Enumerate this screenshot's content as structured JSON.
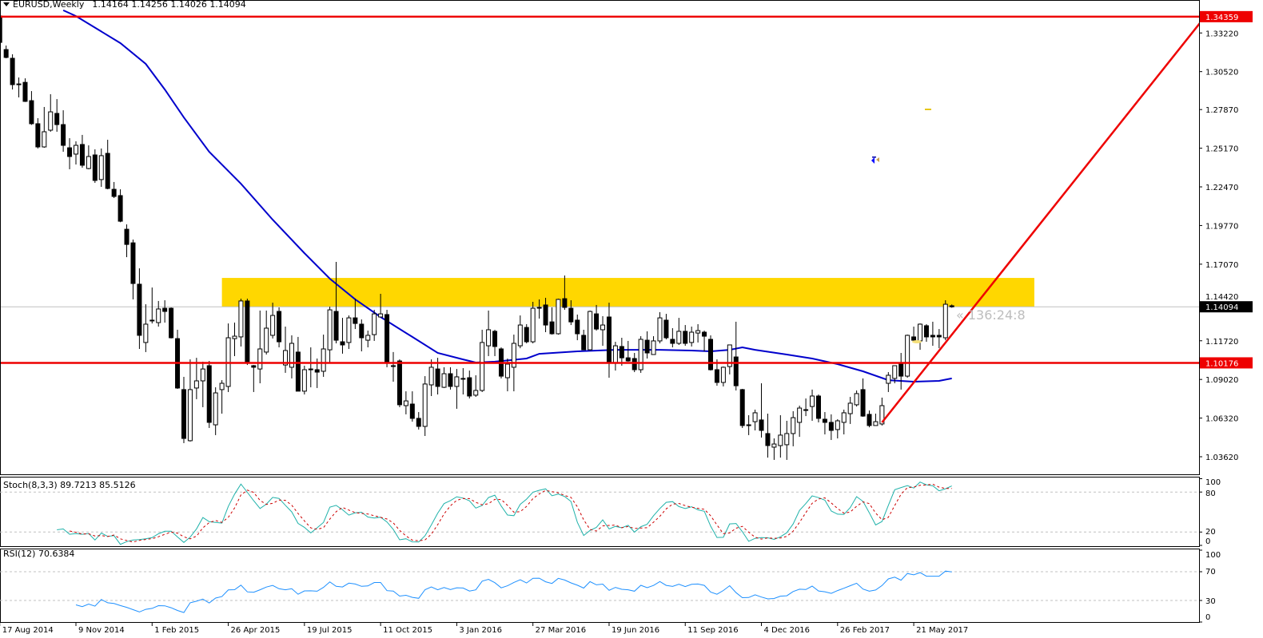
{
  "header": {
    "symbol_timeframe": "EURUSD,Weekly",
    "ohlc": "1.14164 1.14256 1.14026 1.14094",
    "menu_icon": "triangle-down-icon"
  },
  "countdown": "« 136:24:8",
  "colors": {
    "bull_body": "#ffffff",
    "bear_body": "#000000",
    "moving_average": "#0000cc",
    "horizontal_lines": "#ee0000",
    "trendline": "#ee0000",
    "zone": "#ffd700",
    "bid_line": "#c0c0c0",
    "stoch_main": "#20b2aa",
    "stoch_signal": "#cc0000",
    "rsi": "#1e90ff"
  },
  "chart_data": {
    "type": "candlestick",
    "symbol": "EURUSD",
    "timeframe": "Weekly",
    "grid": false,
    "price_axis": {
      "ticks": [
        "1.33220",
        "1.30520",
        "1.27870",
        "1.25170",
        "1.22470",
        "1.19770",
        "1.17070",
        "1.14420",
        "1.11720",
        "1.09020",
        "1.06320",
        "1.03620"
      ],
      "range": [
        1.0362,
        1.3435
      ]
    },
    "x_ticks": [
      "17 Aug 2014",
      "9 Nov 2014",
      "1 Feb 2015",
      "26 Apr 2015",
      "19 Jul 2015",
      "11 Oct 2015",
      "3 Jan 2016",
      "27 Mar 2016",
      "19 Jun 2016",
      "11 Sep 2016",
      "4 Dec 2016",
      "26 Feb 2017",
      "21 May 2017"
    ],
    "candles_ohlc": [
      [
        1.3441,
        1.345,
        1.324,
        1.3256
      ],
      [
        1.3206,
        1.3234,
        1.3145,
        1.3151
      ],
      [
        1.3145,
        1.3173,
        1.2927,
        1.2961
      ],
      [
        1.2966,
        1.3011,
        1.2872,
        1.2966
      ],
      [
        1.2977,
        1.3005,
        1.284,
        1.2844
      ],
      [
        1.2849,
        1.2916,
        1.268,
        1.2688
      ],
      [
        1.2688,
        1.2727,
        1.2515,
        1.2526
      ],
      [
        1.2526,
        1.2805,
        1.252,
        1.2632
      ],
      [
        1.2643,
        1.2894,
        1.2632,
        1.2771
      ],
      [
        1.276,
        1.286,
        1.2632,
        1.2682
      ],
      [
        1.2682,
        1.2782,
        1.2492,
        1.2537
      ],
      [
        1.252,
        1.2587,
        1.237,
        1.2459
      ],
      [
        1.2476,
        1.2565,
        1.2403,
        1.2537
      ],
      [
        1.2543,
        1.261,
        1.2381,
        1.2398
      ],
      [
        1.2375,
        1.2537,
        1.237,
        1.2459
      ],
      [
        1.247,
        1.2509,
        1.2275,
        1.2292
      ],
      [
        1.2298,
        1.2515,
        1.2247,
        1.2465
      ],
      [
        1.2481,
        1.2576,
        1.223,
        1.2236
      ],
      [
        1.223,
        1.2281,
        1.2169,
        1.218
      ],
      [
        1.2186,
        1.223,
        1.2,
        1.2007
      ],
      [
        1.1951,
        1.1985,
        1.1756,
        1.1845
      ],
      [
        1.1856,
        1.1879,
        1.1461,
        1.1572
      ],
      [
        1.1567,
        1.1678,
        1.1115,
        1.121
      ],
      [
        1.116,
        1.1427,
        1.1093,
        1.1288
      ],
      [
        1.1316,
        1.1544,
        1.1293,
        1.1316
      ],
      [
        1.1299,
        1.145,
        1.1271,
        1.1394
      ],
      [
        1.1399,
        1.1455,
        1.1299,
        1.1377
      ],
      [
        1.1399,
        1.1405,
        1.1188,
        1.1193
      ],
      [
        1.1187,
        1.1249,
        1.0836,
        1.0842
      ],
      [
        1.0831,
        1.092,
        1.0457,
        1.049
      ],
      [
        1.0474,
        1.1042,
        1.0468,
        1.0831
      ],
      [
        1.0842,
        1.1053,
        1.0764,
        1.0892
      ],
      [
        1.0892,
        1.1026,
        1.0708,
        1.0975
      ],
      [
        1.0998,
        1.1031,
        1.0563,
        1.0602
      ],
      [
        1.0585,
        1.0847,
        1.0513,
        1.0808
      ],
      [
        1.0831,
        1.0897,
        1.0663,
        1.0875
      ],
      [
        1.0853,
        1.1293,
        1.0814,
        1.1193
      ],
      [
        1.1187,
        1.1299,
        1.1065,
        1.1204
      ],
      [
        1.1199,
        1.1466,
        1.1132,
        1.145
      ],
      [
        1.145,
        1.1466,
        1.1003,
        1.102
      ],
      [
        1.0998,
        1.1003,
        1.0814,
        1.0987
      ],
      [
        1.0975,
        1.1383,
        1.0875,
        1.1115
      ],
      [
        1.1093,
        1.1383,
        1.1076,
        1.126
      ],
      [
        1.121,
        1.1438,
        1.1188,
        1.1349
      ],
      [
        1.1377,
        1.1405,
        1.1126,
        1.1165
      ],
      [
        1.1003,
        1.1271,
        1.0948,
        1.1104
      ],
      [
        1.0987,
        1.121,
        1.0909,
        1.1154
      ],
      [
        1.1093,
        1.1199,
        1.082,
        1.082
      ],
      [
        1.082,
        1.0998,
        1.0797,
        1.097
      ],
      [
        1.0975,
        1.1126,
        1.0847,
        1.0975
      ],
      [
        1.097,
        1.1048,
        1.0842,
        1.0953
      ],
      [
        1.0959,
        1.1215,
        1.092,
        1.1115
      ],
      [
        1.1109,
        1.141,
        1.102,
        1.1388
      ],
      [
        1.1377,
        1.1723,
        1.1154,
        1.1176
      ],
      [
        1.1165,
        1.1332,
        1.1082,
        1.1143
      ],
      [
        1.116,
        1.1349,
        1.1115,
        1.1332
      ],
      [
        1.1332,
        1.1466,
        1.1254,
        1.1293
      ],
      [
        1.1288,
        1.1321,
        1.1098,
        1.1193
      ],
      [
        1.1176,
        1.1243,
        1.1126,
        1.121
      ],
      [
        1.1215,
        1.1388,
        1.1171,
        1.136
      ],
      [
        1.1338,
        1.15,
        1.1338,
        1.136
      ],
      [
        1.1355,
        1.1388,
        1.0987,
        1.102
      ],
      [
        1.0998,
        1.1093,
        1.0886,
        1.0998
      ],
      [
        1.1031,
        1.1042,
        1.0708,
        1.0725
      ],
      [
        1.0719,
        1.0819,
        1.0658,
        1.0752
      ],
      [
        1.073,
        1.0819,
        1.0607,
        1.063
      ],
      [
        1.063,
        1.0674,
        1.0552,
        1.0574
      ],
      [
        1.0574,
        1.0925,
        1.0507,
        1.087
      ],
      [
        1.0864,
        1.1042,
        1.0786,
        1.0987
      ],
      [
        1.0975,
        1.1053,
        1.0797,
        1.0853
      ],
      [
        1.0847,
        1.0987,
        1.0842,
        1.0942
      ],
      [
        1.0942,
        1.0987,
        1.0831,
        1.0853
      ],
      [
        1.0853,
        1.0975,
        1.0697,
        1.092
      ],
      [
        1.0909,
        1.0981,
        1.0797,
        1.0909
      ],
      [
        1.0914,
        1.0964,
        1.0769,
        1.0786
      ],
      [
        1.0792,
        1.0931,
        1.078,
        1.0825
      ],
      [
        1.0825,
        1.1249,
        1.0814,
        1.116
      ],
      [
        1.1137,
        1.1383,
        1.1065,
        1.1249
      ],
      [
        1.1238,
        1.1249,
        1.1065,
        1.1132
      ],
      [
        1.1115,
        1.1126,
        1.0909,
        1.0925
      ],
      [
        1.0914,
        1.1048,
        1.0819,
        1.1009
      ],
      [
        1.0987,
        1.1215,
        1.0819,
        1.1154
      ],
      [
        1.1137,
        1.1349,
        1.112,
        1.1282
      ],
      [
        1.1265,
        1.1288,
        1.1154,
        1.1165
      ],
      [
        1.1165,
        1.1444,
        1.1154,
        1.1399
      ],
      [
        1.1405,
        1.1461,
        1.1327,
        1.1405
      ],
      [
        1.1422,
        1.1472,
        1.1232,
        1.1282
      ],
      [
        1.1304,
        1.1405,
        1.1215,
        1.1221
      ],
      [
        1.1221,
        1.1466,
        1.1215,
        1.1461
      ],
      [
        1.1466,
        1.1628,
        1.1388,
        1.1405
      ],
      [
        1.1399,
        1.1455,
        1.1282,
        1.1304
      ],
      [
        1.1316,
        1.1355,
        1.1176,
        1.1221
      ],
      [
        1.121,
        1.1249,
        1.1109,
        1.1109
      ],
      [
        1.1109,
        1.1383,
        1.1104,
        1.1377
      ],
      [
        1.136,
        1.1422,
        1.1243,
        1.1254
      ],
      [
        1.1249,
        1.1344,
        1.1137,
        1.1282
      ],
      [
        1.1338,
        1.1438,
        1.0914,
        1.102
      ],
      [
        1.102,
        1.1165,
        1.0964,
        1.1137
      ],
      [
        1.1132,
        1.1193,
        1.0998,
        1.1053
      ],
      [
        1.1053,
        1.1171,
        1.1026,
        1.1031
      ],
      [
        1.1048,
        1.1087,
        1.0953,
        1.097
      ],
      [
        1.097,
        1.1204,
        1.0948,
        1.1182
      ],
      [
        1.1176,
        1.1238,
        1.1048,
        1.1087
      ],
      [
        1.1076,
        1.1204,
        1.1076,
        1.1171
      ],
      [
        1.1171,
        1.1372,
        1.1154,
        1.1332
      ],
      [
        1.1316,
        1.136,
        1.1182,
        1.1193
      ],
      [
        1.1182,
        1.126,
        1.1126,
        1.1154
      ],
      [
        1.1154,
        1.1332,
        1.1143,
        1.1238
      ],
      [
        1.1238,
        1.1282,
        1.1137,
        1.1154
      ],
      [
        1.116,
        1.1271,
        1.1132,
        1.1232
      ],
      [
        1.1226,
        1.1288,
        1.116,
        1.1243
      ],
      [
        1.1232,
        1.1243,
        1.1098,
        1.1204
      ],
      [
        1.1182,
        1.121,
        1.0964,
        1.097
      ],
      [
        1.097,
        1.1042,
        1.0858,
        1.0881
      ],
      [
        1.0881,
        1.0992,
        1.0853,
        1.0987
      ],
      [
        1.0992,
        1.1143,
        1.0937,
        1.1143
      ],
      [
        1.1059,
        1.1305,
        1.0825,
        1.0858
      ],
      [
        1.0831,
        1.0836,
        1.0563,
        1.058
      ],
      [
        1.0585,
        1.0652,
        1.0513,
        1.0585
      ],
      [
        1.0607,
        1.0691,
        1.0546,
        1.0669
      ],
      [
        1.0619,
        1.0875,
        1.0496,
        1.0546
      ],
      [
        1.0524,
        1.0663,
        1.0356,
        1.044
      ],
      [
        1.0429,
        1.049,
        1.034,
        1.0451
      ],
      [
        1.044,
        1.0652,
        1.0356,
        1.0513
      ],
      [
        1.0446,
        1.0613,
        1.034,
        1.0524
      ],
      [
        1.0524,
        1.068,
        1.0435,
        1.0635
      ],
      [
        1.0602,
        1.0719,
        1.0501,
        1.0702
      ],
      [
        1.0691,
        1.0769,
        1.0646,
        1.0691
      ],
      [
        1.0713,
        1.0831,
        1.0613,
        1.0786
      ],
      [
        1.0786,
        1.0797,
        1.0602,
        1.063
      ],
      [
        1.0624,
        1.0674,
        1.0518,
        1.0602
      ],
      [
        1.0602,
        1.0658,
        1.0479,
        1.0546
      ],
      [
        1.0552,
        1.0624,
        1.049,
        1.0613
      ],
      [
        1.0602,
        1.0691,
        1.0518,
        1.0669
      ],
      [
        1.0663,
        1.078,
        1.0591,
        1.0736
      ],
      [
        1.0725,
        1.0825,
        1.0713,
        1.0803
      ],
      [
        1.0831,
        1.0909,
        1.0641,
        1.0646
      ],
      [
        1.0658,
        1.0685,
        1.0568,
        1.058
      ],
      [
        1.058,
        1.0663,
        1.058,
        1.0607
      ],
      [
        1.0591,
        1.0775,
        1.058,
        1.0719
      ],
      [
        1.0875,
        1.0953,
        1.0814,
        1.0931
      ],
      [
        1.0909,
        1.0998,
        1.0875,
        1.0998
      ],
      [
        1.1009,
        1.1087,
        1.0831,
        1.0925
      ],
      [
        1.0925,
        1.1215,
        1.0914,
        1.121
      ],
      [
        1.1199,
        1.1271,
        1.116,
        1.1176
      ],
      [
        1.1171,
        1.1293,
        1.1109,
        1.1288
      ],
      [
        1.1277,
        1.1288,
        1.1165,
        1.1199
      ],
      [
        1.121,
        1.1305,
        1.1137,
        1.1199
      ],
      [
        1.121,
        1.1254,
        1.112,
        1.1199
      ],
      [
        1.1193,
        1.1455,
        1.1176,
        1.1427
      ],
      [
        1.14164,
        1.14256,
        1.14026,
        1.14094
      ]
    ],
    "moving_average": [
      [
        "26 Oct 2014",
        1.348
      ],
      [
        "9 Nov 2014",
        1.344
      ],
      [
        "28 Dec 2014",
        1.3251
      ],
      [
        "25 Jan 2015",
        1.3106
      ],
      [
        "15 Feb 2015",
        1.2927
      ],
      [
        "8 Mar 2015",
        1.2732
      ],
      [
        "5 Apr 2015",
        1.2492
      ],
      [
        "10 May 2015",
        1.2269
      ],
      [
        "14 Jun 2015",
        1.2018
      ],
      [
        "19 Jul 2015",
        1.1784
      ],
      [
        "16 Aug 2015",
        1.1606
      ],
      [
        "13 Sep 2015",
        1.1461
      ],
      [
        "11 Oct 2015",
        1.1338
      ],
      [
        "15 Nov 2015",
        1.1199
      ],
      [
        "13 Dec 2015",
        1.1087
      ],
      [
        "10 Jan 2016",
        1.1042
      ],
      [
        "24 Jan 2016",
        1.102
      ],
      [
        "14 Feb 2016",
        1.1026
      ],
      [
        "20 Mar 2016",
        1.1048
      ],
      [
        "3 Apr 2016",
        1.1081
      ],
      [
        "15 May 2016",
        1.1098
      ],
      [
        "26 Jun 2016",
        1.1109
      ],
      [
        "14 Aug 2016",
        1.1109
      ],
      [
        "18 Sep 2016",
        1.1104
      ],
      [
        "9 Oct 2016",
        1.1098
      ],
      [
        "30 Oct 2016",
        1.1109
      ],
      [
        "13 Nov 2016",
        1.1126
      ],
      [
        "27 Nov 2016",
        1.1109
      ],
      [
        "1 Jan 2017",
        1.1076
      ],
      [
        "29 Jan 2017",
        1.1048
      ],
      [
        "26 Feb 2017",
        1.1009
      ],
      [
        "26 Mar 2017",
        1.0959
      ],
      [
        "23 Apr 2017",
        1.0897
      ],
      [
        "21 May 2017",
        1.0886
      ],
      [
        "18 Jun 2017",
        1.0892
      ],
      [
        "2 Jul 2017",
        1.0909
      ]
    ],
    "horizontal_lines": [
      {
        "price": 1.34359,
        "label": "1.34359"
      },
      {
        "price": 1.10176,
        "label": "1.10176"
      }
    ],
    "bid": {
      "price": 1.14094,
      "label": "1.14094"
    },
    "zone": {
      "from": "19 Apr 2015",
      "to": "1 Oct 2017",
      "price_low": 1.141,
      "price_high": 1.1611
    },
    "trendline": {
      "from": [
        "16 Apr 2017",
        1.0602
      ],
      "to": [
        "8 Apr 2018",
        1.3442
      ]
    },
    "stochastic": {
      "label": "Stoch(8,3,3) 89.7213 85.5126",
      "k_period": 8,
      "d_period": 3,
      "slowing": 3,
      "levels": [
        20,
        80
      ],
      "axis_ticks": [
        "100",
        "80",
        "20",
        "0"
      ]
    },
    "rsi": {
      "label": "RSI(12) 70.6384",
      "period": 12,
      "levels": [
        30,
        70
      ],
      "axis_ticks": [
        "100",
        "70",
        "30",
        "0"
      ]
    }
  }
}
